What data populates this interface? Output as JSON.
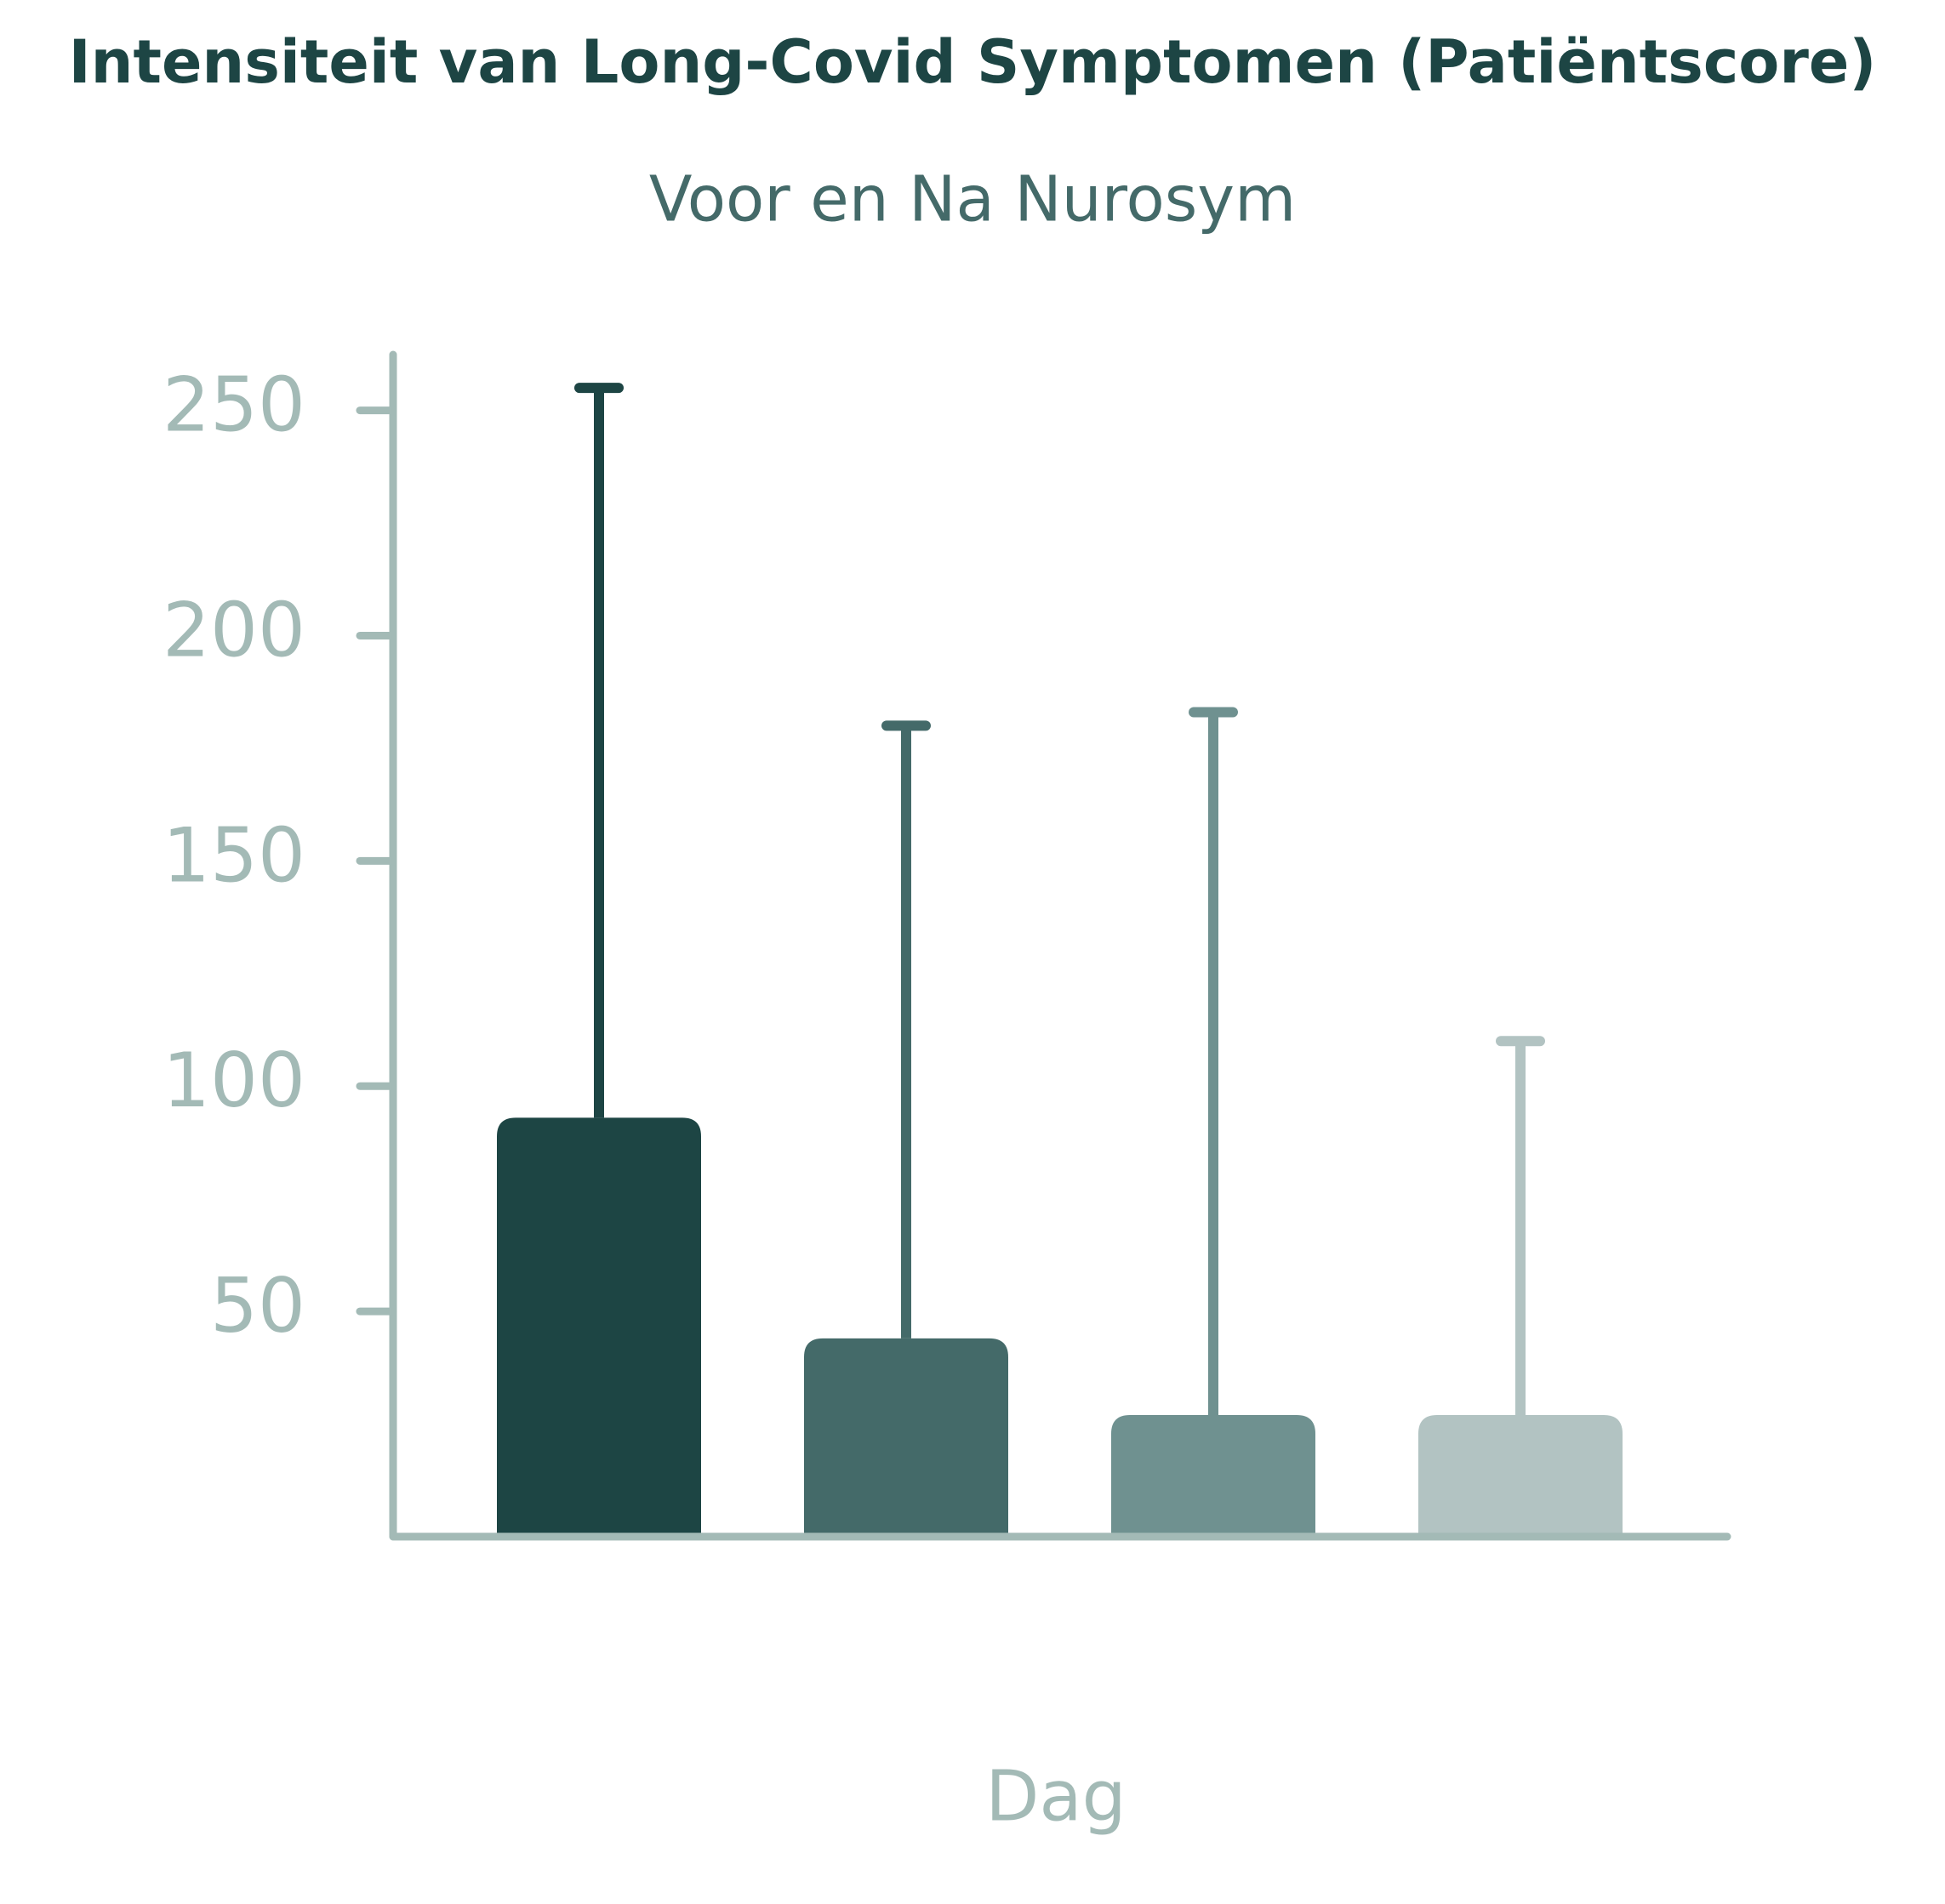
{
  "chart_data": {
    "type": "bar",
    "title": "Intensiteit van Long-Covid Symptomen (Patiëntscore)",
    "subtitle": "Voor en Na Nurosym",
    "x_label": "Dag",
    "categories": [
      null,
      null,
      null,
      null
    ],
    "values": [
      93,
      44,
      27,
      27
    ],
    "errors": [
      162,
      136,
      156,
      83
    ],
    "colors": [
      "#1d4544",
      "#446a69",
      "#6f9190",
      "#b2c3c2"
    ],
    "ylim": [
      0,
      262
    ],
    "yticks": [
      50,
      100,
      150,
      200,
      250
    ],
    "grid": false
  }
}
